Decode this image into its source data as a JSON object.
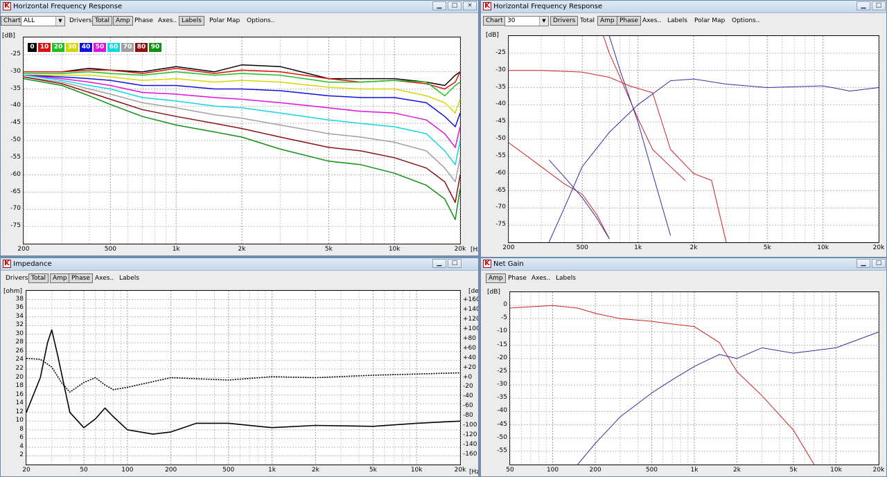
{
  "windows": {
    "hfr1": {
      "title": "Horizontal Frequency Response",
      "chart_label": "Chart",
      "chart_select": "ALL",
      "toolbar": [
        "Drivers",
        "Total",
        "Amp",
        "Phase",
        "Axes..",
        "Labels",
        "Polar Map",
        "Options.."
      ],
      "active": [
        "Total",
        "Amp",
        "Labels"
      ],
      "y_unit": "[dB]",
      "x_unit": "[Hz]"
    },
    "hfr2": {
      "title": "Horizontal Frequency Response",
      "chart_label": "Chart",
      "chart_select": "30",
      "toolbar": [
        "Drivers",
        "Total",
        "Amp",
        "Phase",
        "Axes..",
        "Labels",
        "Polar Map",
        "Options.."
      ],
      "active": [
        "Drivers",
        "Amp",
        "Phase"
      ],
      "y_unit": "[dB]"
    },
    "impedance": {
      "title": "Impedance",
      "toolbar": [
        "Drivers",
        "Total",
        "Amp",
        "Phase",
        "Axes..",
        "Labels"
      ],
      "active": [
        "Total",
        "Amp",
        "Phase"
      ],
      "y_unit": "[ohm]",
      "y2_unit": "[deg]",
      "x_unit": "[Hz]"
    },
    "netgain": {
      "title": "Net Gain",
      "toolbar": [
        "Amp",
        "Phase",
        "Axes..",
        "Labels"
      ],
      "active": [
        "Amp"
      ],
      "y_unit": "[dB]"
    }
  },
  "window_buttons": {
    "minimize": "▁",
    "maximize": "□",
    "close": "×"
  },
  "icons": {
    "app": "K",
    "dropdown": "▼"
  },
  "chart_data": [
    {
      "id": "hfr1",
      "type": "line",
      "x_scale": "log",
      "xlim": [
        200,
        20000
      ],
      "ylim": [
        -80,
        -20
      ],
      "x_ticks": [
        "200",
        "500",
        "1k",
        "2k",
        "5k",
        "10k",
        "20k"
      ],
      "x_tick_values": [
        200,
        500,
        1000,
        2000,
        5000,
        10000,
        20000
      ],
      "y_ticks": [
        "-25",
        "-30",
        "-35",
        "-40",
        "-45",
        "-50",
        "-55",
        "-60",
        "-65",
        "-70",
        "-75"
      ],
      "grid": true,
      "legend": "top-left",
      "legend_entries": [
        {
          "label": "0",
          "color": "#000000"
        },
        {
          "label": "10",
          "color": "#e01010"
        },
        {
          "label": "20",
          "color": "#20c020"
        },
        {
          "label": "30",
          "color": "#d6d600"
        },
        {
          "label": "40",
          "color": "#1010e0"
        },
        {
          "label": "50",
          "color": "#e010e0"
        },
        {
          "label": "60",
          "color": "#10d8e0"
        },
        {
          "label": "70",
          "color": "#a0a0a0"
        },
        {
          "label": "80",
          "color": "#8b1010"
        },
        {
          "label": "90",
          "color": "#109010"
        }
      ],
      "x": [
        200,
        300,
        400,
        500,
        700,
        1000,
        1500,
        2000,
        3000,
        5000,
        7000,
        10000,
        14000,
        17000,
        19000,
        20000
      ],
      "series": [
        {
          "name": "0",
          "color": "#000000",
          "values": [
            -30,
            -30,
            -29,
            -29.5,
            -30,
            -28.5,
            -30,
            -28,
            -28.5,
            -32,
            -32,
            -32,
            -33,
            -34,
            -31,
            -30
          ]
        },
        {
          "name": "10",
          "color": "#e01010",
          "values": [
            -30,
            -30,
            -29.5,
            -29.5,
            -30.5,
            -29,
            -30.5,
            -29.5,
            -30,
            -32,
            -33,
            -32.5,
            -33.5,
            -35,
            -33,
            -30
          ]
        },
        {
          "name": "20",
          "color": "#20c020",
          "values": [
            -30.5,
            -30.5,
            -30,
            -30.5,
            -31,
            -30,
            -31,
            -30.5,
            -31,
            -33,
            -33,
            -32.5,
            -33,
            -37,
            -34,
            -33
          ]
        },
        {
          "name": "30",
          "color": "#d6d600",
          "values": [
            -31,
            -31,
            -31,
            -31.5,
            -32.5,
            -32,
            -33,
            -32.5,
            -33,
            -34.5,
            -35,
            -35,
            -37,
            -39,
            -42,
            -38
          ]
        },
        {
          "name": "40",
          "color": "#1010e0",
          "values": [
            -31,
            -31.5,
            -32,
            -32.5,
            -34,
            -34,
            -35,
            -35,
            -35.5,
            -37,
            -37.5,
            -37.5,
            -39,
            -43,
            -46,
            -42
          ]
        },
        {
          "name": "50",
          "color": "#e010e0",
          "values": [
            -31,
            -32,
            -33,
            -34,
            -36,
            -36.5,
            -37.5,
            -38,
            -39,
            -40.5,
            -41.5,
            -42,
            -44,
            -48,
            -52,
            -46
          ]
        },
        {
          "name": "60",
          "color": "#10d8e0",
          "values": [
            -31,
            -32.5,
            -34,
            -35,
            -37.5,
            -38.5,
            -40,
            -40.5,
            -42,
            -44,
            -45,
            -46,
            -48,
            -53,
            -57,
            -50
          ]
        },
        {
          "name": "70",
          "color": "#a0a0a0",
          "values": [
            -31.5,
            -33,
            -35,
            -36.5,
            -39,
            -40.5,
            -42.5,
            -43.5,
            -45.5,
            -48,
            -49,
            -50.5,
            -53,
            -58,
            -62,
            -55
          ]
        },
        {
          "name": "80",
          "color": "#8b1010",
          "values": [
            -31.5,
            -33.5,
            -36,
            -38,
            -41,
            -43,
            -45,
            -46.5,
            -49,
            -52,
            -53,
            -55,
            -58,
            -62,
            -68,
            -60
          ]
        },
        {
          "name": "90",
          "color": "#109010",
          "values": [
            -32,
            -34,
            -37,
            -39.5,
            -43,
            -45.5,
            -47.5,
            -49,
            -52.5,
            -56,
            -57,
            -59.5,
            -63,
            -67,
            -73,
            -64
          ]
        }
      ]
    },
    {
      "id": "hfr2",
      "type": "line",
      "x_scale": "log",
      "xlim": [
        200,
        20000
      ],
      "ylim": [
        -80,
        -20
      ],
      "x_ticks": [
        "200",
        "500",
        "1k",
        "2k",
        "5k",
        "10k",
        "20k"
      ],
      "x_tick_values": [
        200,
        500,
        1000,
        2000,
        5000,
        10000,
        20000
      ],
      "y_ticks": [
        "-25",
        "-30",
        "-35",
        "-40",
        "-45",
        "-50",
        "-55",
        "-60",
        "-65",
        "-70",
        "-75"
      ],
      "grid": true,
      "series": [
        {
          "color": "#d02020",
          "x": [
            200,
            300,
            500,
            700,
            900,
            1200,
            1500,
            2000,
            2500,
            3000
          ],
          "values": [
            -30,
            -30,
            -30.5,
            -32,
            -34.5,
            -36.5,
            -53,
            -60,
            -62,
            -80
          ]
        },
        {
          "color": "#d02020",
          "x": [
            200,
            300,
            400,
            500,
            600,
            700
          ],
          "values": [
            -51,
            -58,
            -63,
            -66,
            -72,
            -79
          ]
        },
        {
          "color": "#d02020",
          "x": [
            650,
            700,
            800,
            1000,
            1200,
            1500,
            1800
          ],
          "values": [
            -20,
            -25,
            -32,
            -44,
            -53,
            -58,
            -62
          ]
        },
        {
          "color": "#3030a0",
          "x": [
            330,
            400,
            500,
            700,
            1000,
            1500,
            2000,
            3000,
            5000,
            10000,
            14000,
            20000
          ],
          "values": [
            -80,
            -70,
            -58,
            -48,
            -40,
            -33,
            -32.5,
            -34,
            -35,
            -34.5,
            -36,
            -35
          ]
        },
        {
          "color": "#3030a0",
          "x": [
            330,
            400,
            500,
            600,
            700
          ],
          "values": [
            -56,
            -61,
            -67,
            -73,
            -79
          ]
        },
        {
          "color": "#3030a0",
          "x": [
            700,
            800,
            1000,
            1200,
            1500
          ],
          "values": [
            -20,
            -30,
            -45,
            -60,
            -78
          ]
        }
      ]
    },
    {
      "id": "impedance",
      "type": "line",
      "x_scale": "log",
      "xlim": [
        20,
        20000
      ],
      "ylim": [
        0,
        40
      ],
      "y2lim": [
        -180,
        180
      ],
      "x_ticks": [
        "20",
        "50",
        "100",
        "200",
        "500",
        "1k",
        "2k",
        "5k",
        "10k",
        "20k"
      ],
      "x_tick_values": [
        20,
        50,
        100,
        200,
        500,
        1000,
        2000,
        5000,
        10000,
        20000
      ],
      "y_ticks": [
        "38",
        "36",
        "34",
        "32",
        "30",
        "28",
        "26",
        "24",
        "22",
        "20",
        "18",
        "16",
        "14",
        "12",
        "10",
        "8",
        "6",
        "4",
        "2"
      ],
      "y2_ticks": [
        "+160",
        "+140",
        "+120",
        "+100",
        "+80",
        "+60",
        "+40",
        "+20",
        "+0",
        "-20",
        "-40",
        "-60",
        "-80",
        "-100",
        "-120",
        "-140",
        "-160"
      ],
      "grid": true,
      "series": [
        {
          "name": "Impedance",
          "axis": "ohm",
          "color": "#000000",
          "x": [
            20,
            25,
            28,
            30,
            33,
            40,
            50,
            60,
            70,
            80,
            100,
            150,
            200,
            300,
            500,
            1000,
            2000,
            5000,
            10000,
            20000
          ],
          "values": [
            12,
            20,
            28,
            31,
            25,
            12,
            8.5,
            10.5,
            13,
            11,
            8,
            7,
            7.5,
            9.5,
            9.5,
            8.5,
            9,
            8.8,
            9.5,
            10
          ]
        },
        {
          "name": "Phase",
          "axis": "deg",
          "color": "#000000",
          "dashed": true,
          "x": [
            20,
            25,
            30,
            35,
            40,
            50,
            60,
            70,
            80,
            100,
            200,
            500,
            1000,
            2000,
            5000,
            20000
          ],
          "values": [
            40,
            38,
            22,
            -10,
            -30,
            -10,
            0,
            -15,
            -25,
            -20,
            0,
            -5,
            2,
            0,
            5,
            10
          ]
        }
      ]
    },
    {
      "id": "netgain",
      "type": "line",
      "x_scale": "log",
      "xlim": [
        50,
        20000
      ],
      "ylim": [
        -60,
        5
      ],
      "x_ticks": [
        "50",
        "100",
        "200",
        "500",
        "1k",
        "2k",
        "5k",
        "10k",
        "20k"
      ],
      "x_tick_values": [
        50,
        100,
        200,
        500,
        1000,
        2000,
        5000,
        10000,
        20000
      ],
      "y_ticks": [
        "0",
        "-5",
        "-10",
        "-15",
        "-20",
        "-25",
        "-30",
        "-35",
        "-40",
        "-45",
        "-50",
        "-55"
      ],
      "grid": true,
      "series": [
        {
          "color": "#d02020",
          "x": [
            50,
            70,
            100,
            150,
            200,
            300,
            500,
            700,
            1000,
            1500,
            2000,
            3000,
            5000,
            7000
          ],
          "values": [
            -1,
            -0.5,
            0,
            -1,
            -3,
            -5,
            -6,
            -7,
            -8,
            -14,
            -25,
            -34,
            -47,
            -60
          ]
        },
        {
          "color": "#3030a0",
          "x": [
            150,
            200,
            300,
            500,
            700,
            1000,
            1500,
            2000,
            3000,
            5000,
            10000,
            20000
          ],
          "values": [
            -60,
            -52,
            -42,
            -33,
            -28,
            -23,
            -18.5,
            -20,
            -16,
            -18,
            -16,
            -10
          ]
        }
      ]
    }
  ]
}
